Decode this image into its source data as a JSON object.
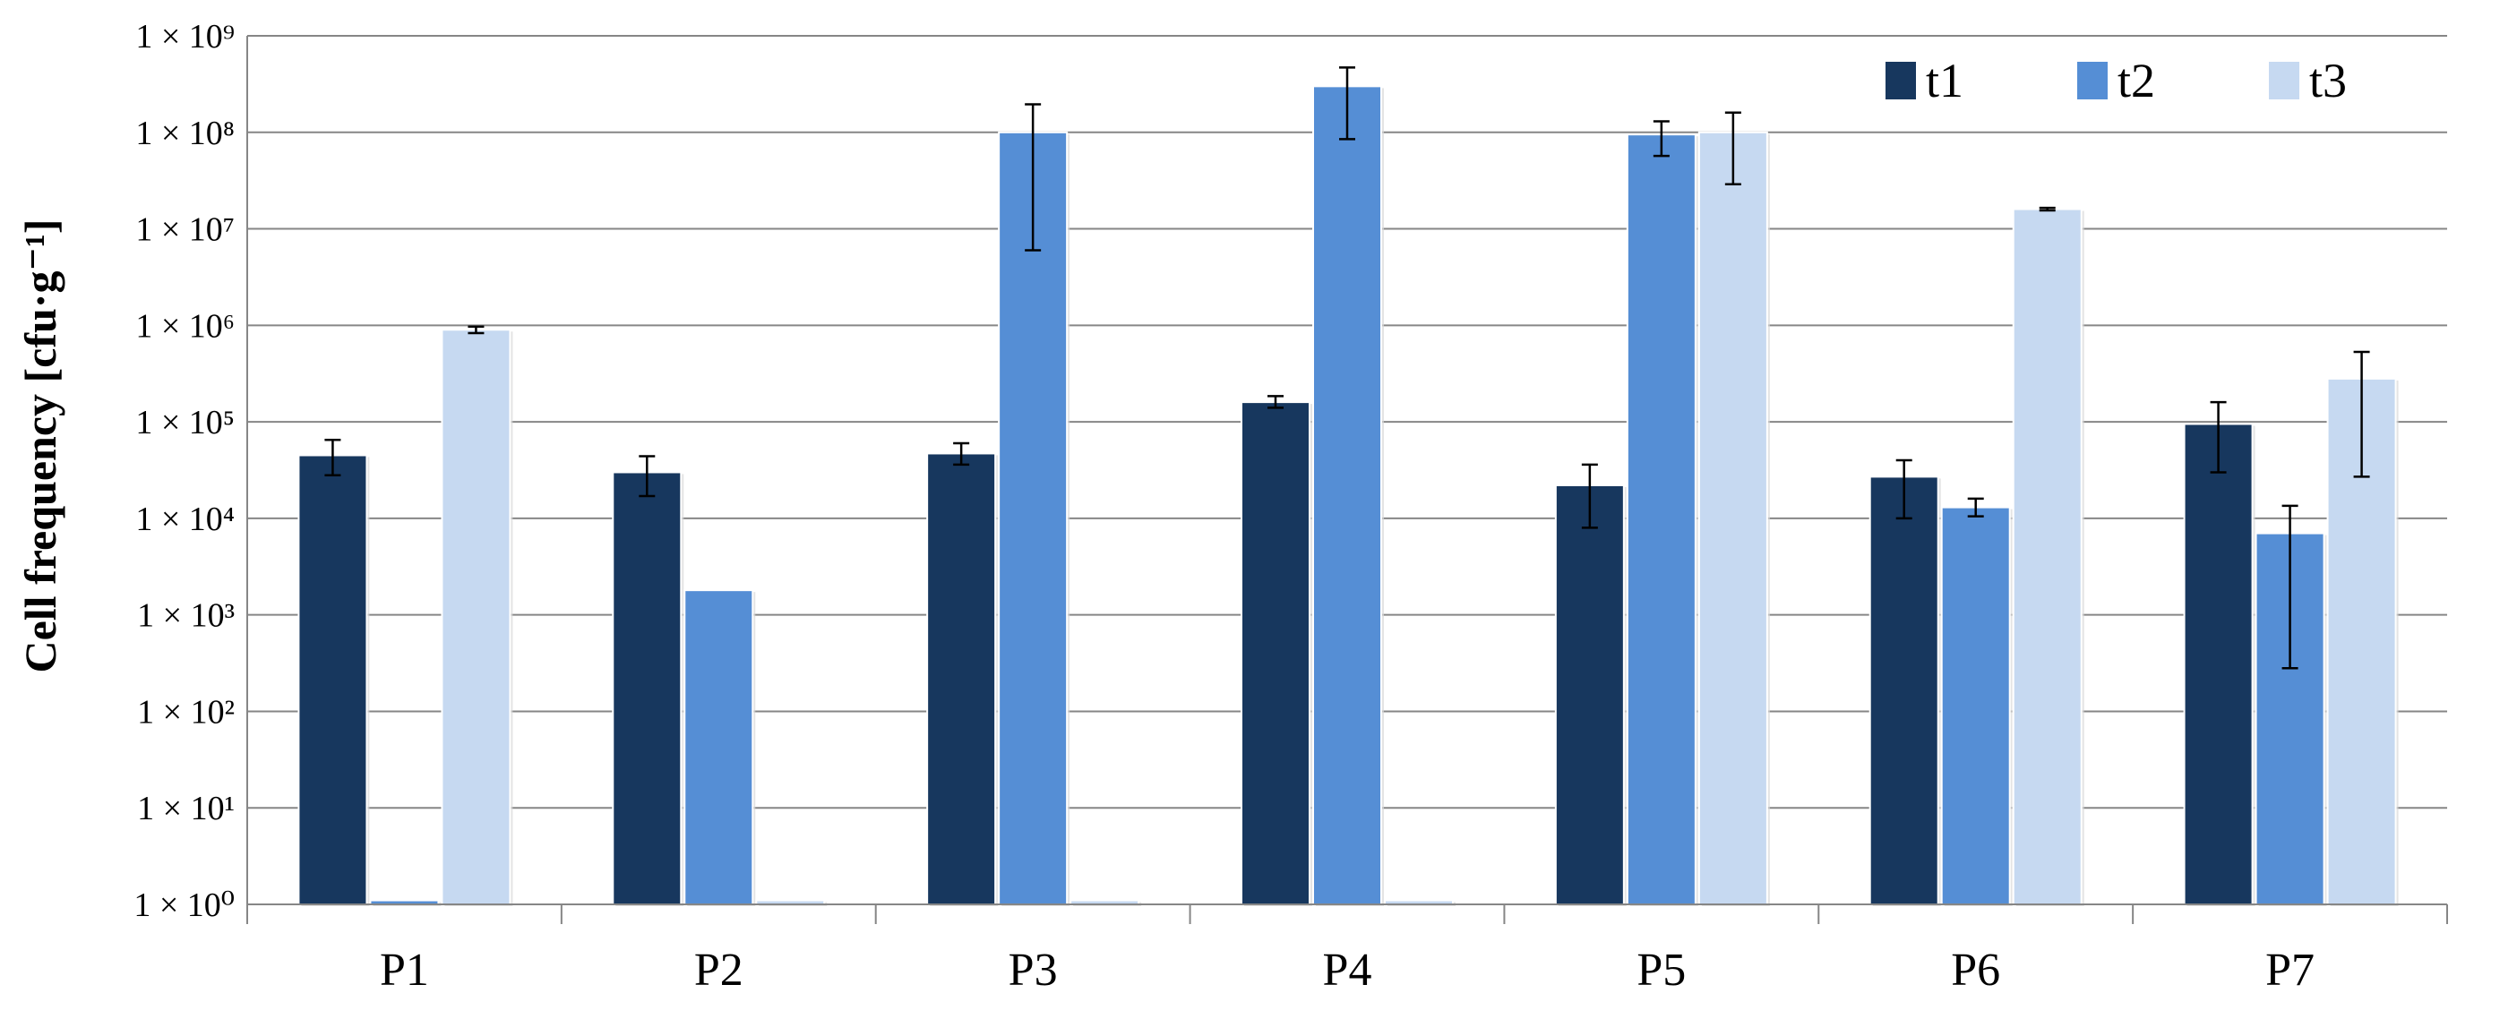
{
  "chart_data": {
    "type": "bar",
    "ylabel": "Cell frequency [cfu·g⁻¹]",
    "y_scale": "log",
    "ylim": [
      1,
      1000000000
    ],
    "y_ticks": [
      {
        "value": 1,
        "label": "1 × 10⁰"
      },
      {
        "value": 10,
        "label": "1 × 10¹"
      },
      {
        "value": 100,
        "label": "1 × 10²"
      },
      {
        "value": 1000,
        "label": "1 × 10³"
      },
      {
        "value": 10000,
        "label": "1 × 10⁴"
      },
      {
        "value": 100000,
        "label": "1 × 10⁵"
      },
      {
        "value": 1000000,
        "label": "1 × 10⁶"
      },
      {
        "value": 10000000,
        "label": "1 × 10⁷"
      },
      {
        "value": 100000000,
        "label": "1 × 10⁸"
      },
      {
        "value": 1000000000,
        "label": "1 × 10⁹"
      }
    ],
    "grid": "horizontal",
    "legend_position": "top-right",
    "categories": [
      "P1",
      "P2",
      "P3",
      "P4",
      "P5",
      "P6",
      "P7"
    ],
    "series": [
      {
        "name": "t1",
        "color": "#17375e",
        "values": [
          45000,
          30000,
          47000,
          160000,
          22000,
          27000,
          95000
        ],
        "error_low": [
          28000,
          17000,
          36000,
          140000,
          8000,
          10000,
          30000
        ],
        "error_high": [
          65000,
          44000,
          60000,
          185000,
          36000,
          40000,
          160000
        ]
      },
      {
        "name": "t2",
        "color": "#558ed5",
        "values": [
          1.1,
          1800,
          100000000,
          300000000,
          95000000,
          13000,
          7000
        ],
        "error_low": [
          null,
          null,
          6000000,
          85000000,
          57000000,
          10500,
          280
        ],
        "error_high": [
          null,
          null,
          195000000,
          470000000,
          130000000,
          16000,
          13500
        ]
      },
      {
        "name": "t3",
        "color": "#c6d9f1",
        "values": [
          900000,
          1.1,
          1.1,
          1.1,
          100000000,
          16000000,
          280000
        ],
        "error_low": [
          830000,
          null,
          null,
          null,
          29000000,
          15500000,
          27000
        ],
        "error_high": [
          970000,
          null,
          null,
          null,
          160000000,
          16500000,
          530000
        ]
      }
    ]
  }
}
